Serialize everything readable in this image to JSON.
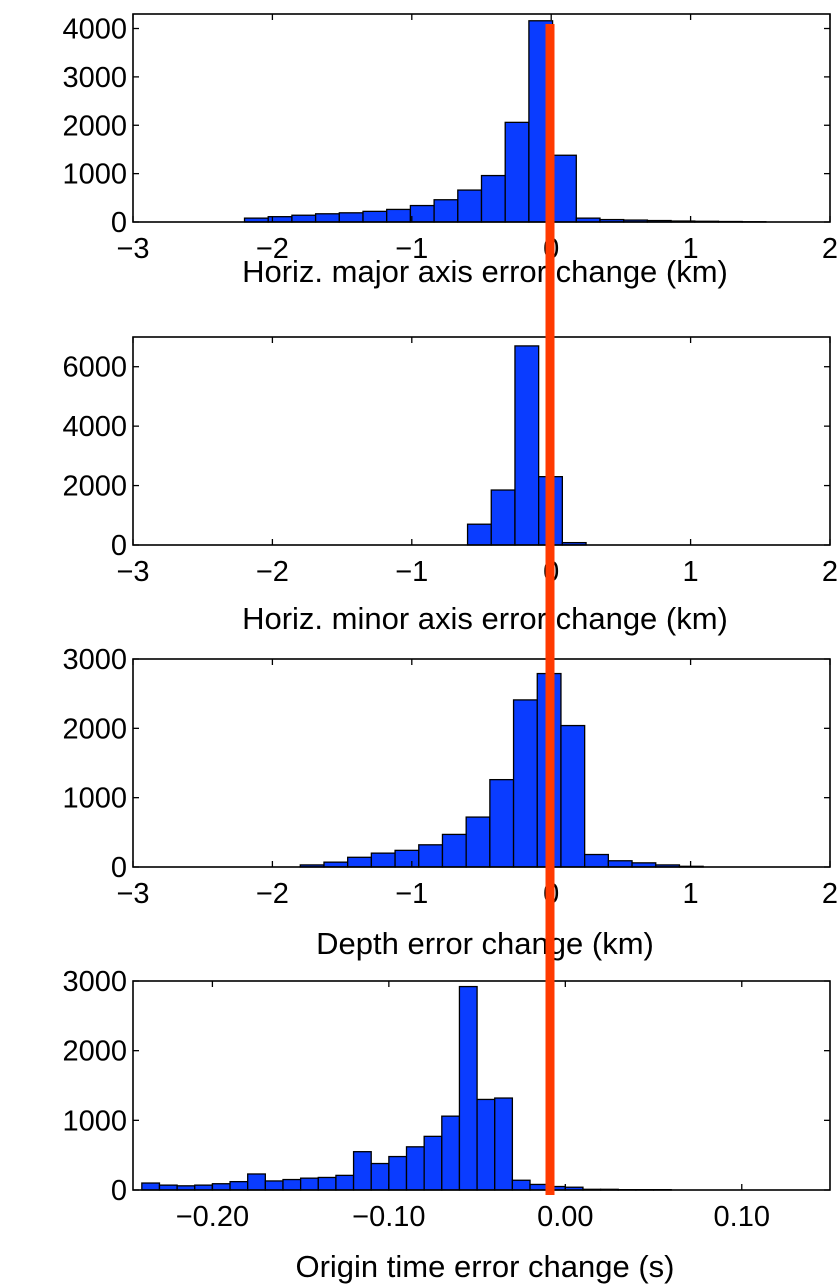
{
  "chart_data": [
    {
      "type": "bar",
      "xlabel": "Horiz. major axis error change (km)",
      "ylabel": "",
      "xlim": [
        -3,
        2
      ],
      "ylim": [
        0,
        4300
      ],
      "xticks": [
        "−3",
        "−2",
        "−1",
        "0",
        "1",
        "2"
      ],
      "xtick_values": [
        -3,
        -2,
        -1,
        0,
        1,
        2
      ],
      "yticks": [
        "0",
        "1000",
        "2000",
        "3000",
        "4000"
      ],
      "ytick_values": [
        0,
        1000,
        2000,
        3000,
        4000
      ],
      "bin_start": -2.2,
      "bin_width": 0.17,
      "values": [
        80,
        110,
        140,
        170,
        190,
        220,
        260,
        340,
        460,
        660,
        960,
        2060,
        4160,
        1380,
        80,
        50,
        40,
        30,
        20,
        15,
        10,
        5
      ],
      "bar_color": "#0a3cff",
      "grid": false,
      "legend": "none"
    },
    {
      "type": "bar",
      "xlabel": "Horiz. minor axis error change (km)",
      "ylabel": "",
      "xlim": [
        -3,
        2
      ],
      "ylim": [
        0,
        7000
      ],
      "xticks": [
        "−3",
        "−2",
        "−1",
        "0",
        "1",
        "2"
      ],
      "xtick_values": [
        -3,
        -2,
        -1,
        0,
        1,
        2
      ],
      "yticks": [
        "0",
        "2000",
        "4000",
        "6000"
      ],
      "ytick_values": [
        0,
        2000,
        4000,
        6000
      ],
      "bin_start": -0.6,
      "bin_width": 0.17,
      "values": [
        700,
        1850,
        6700,
        2300,
        80
      ],
      "bar_color": "#0a3cff",
      "grid": false,
      "legend": "none"
    },
    {
      "type": "bar",
      "xlabel": "Depth error change (km)",
      "ylabel": "",
      "xlim": [
        -3,
        2
      ],
      "ylim": [
        0,
        3000
      ],
      "xticks": [
        "−3",
        "−2",
        "−1",
        "0",
        "1",
        "2"
      ],
      "xtick_values": [
        -3,
        -2,
        -1,
        0,
        1,
        2
      ],
      "yticks": [
        "0",
        "1000",
        "2000",
        "3000"
      ],
      "ytick_values": [
        0,
        1000,
        2000,
        3000
      ],
      "bin_start": -1.8,
      "bin_width": 0.17,
      "values": [
        30,
        70,
        140,
        200,
        240,
        320,
        470,
        720,
        1260,
        2410,
        2790,
        2040,
        180,
        90,
        60,
        30,
        10
      ],
      "bar_color": "#0a3cff",
      "grid": false,
      "legend": "none"
    },
    {
      "type": "bar",
      "xlabel": "Origin time error change (s)",
      "ylabel": "",
      "xlim": [
        -0.245,
        0.15
      ],
      "ylim": [
        0,
        3000
      ],
      "xticks": [
        "−0.20",
        "−0.10",
        "0.00",
        "0.10"
      ],
      "xtick_values": [
        -0.2,
        -0.1,
        0.0,
        0.1
      ],
      "yticks": [
        "0",
        "1000",
        "2000",
        "3000"
      ],
      "ytick_values": [
        0,
        1000,
        2000,
        3000
      ],
      "bin_start": -0.24,
      "bin_width": 0.01,
      "values": [
        100,
        70,
        60,
        70,
        90,
        120,
        230,
        130,
        150,
        170,
        180,
        210,
        550,
        380,
        480,
        620,
        770,
        1060,
        2920,
        1300,
        1320,
        140,
        80,
        50,
        40,
        10,
        10,
        5,
        5,
        5
      ],
      "bar_color": "#0a3cff",
      "grid": false,
      "legend": "none"
    }
  ],
  "overlay": {
    "type": "vertical-line",
    "color": "#ff3a00"
  }
}
